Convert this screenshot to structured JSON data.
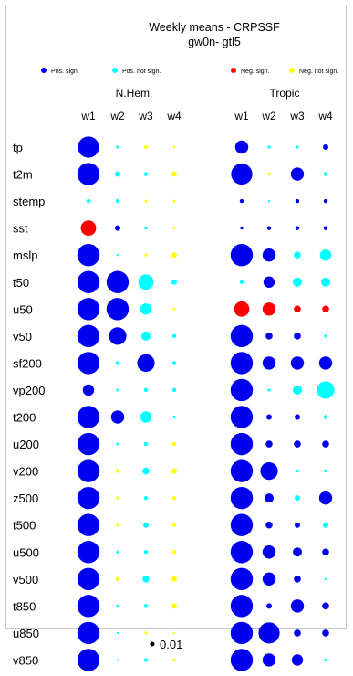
{
  "chart_data": {
    "type": "bubble-matrix",
    "title": "Weekly means - CRPSSF",
    "subtitle": "gw0n- gtl5",
    "legend": [
      {
        "label": "Pos. sign.",
        "color": "#0000ee"
      },
      {
        "label": "Pos. not sign.",
        "color": "#00ffff"
      },
      {
        "label": "Neg. sign.",
        "color": "#ff0000"
      },
      {
        "label": "Neg. not sign.",
        "color": "#ffff00"
      }
    ],
    "groups": [
      "N.Hem.",
      "Tropic"
    ],
    "weeks": [
      "w1",
      "w2",
      "w3",
      "w4"
    ],
    "variables": [
      "tp",
      "t2m",
      "stemp",
      "sst",
      "mslp",
      "t50",
      "u50",
      "v50",
      "sf200",
      "vp200",
      "t200",
      "u200",
      "v200",
      "z500",
      "t500",
      "u500",
      "v500",
      "t850",
      "u850",
      "v850"
    ],
    "scale_reference": {
      "label": "0.01",
      "value": 0.01
    },
    "values_note": "cells: [size_index, category]; category 0=Pos. sign., 1=Pos. not sign., 2=Neg. sign., 3=Neg. not sign.",
    "nhem": [
      [
        [
          11,
          0
        ],
        [
          1,
          1
        ],
        [
          2,
          3
        ],
        [
          0,
          3
        ]
      ],
      [
        [
          12,
          0
        ],
        [
          3,
          1
        ],
        [
          2,
          1
        ],
        [
          3,
          3
        ]
      ],
      [
        [
          2,
          1
        ],
        [
          2,
          1
        ],
        [
          1,
          3
        ],
        [
          1,
          3
        ]
      ],
      [
        [
          8,
          2
        ],
        [
          3,
          0
        ],
        [
          1,
          1
        ],
        [
          0,
          3
        ]
      ],
      [
        [
          12,
          0
        ],
        [
          0,
          1
        ],
        [
          1,
          3
        ],
        [
          3,
          3
        ]
      ],
      [
        [
          12,
          0
        ],
        [
          12,
          0
        ],
        [
          8,
          1
        ],
        [
          3,
          1
        ]
      ],
      [
        [
          12,
          0
        ],
        [
          12,
          0
        ],
        [
          6,
          1
        ],
        [
          1,
          3
        ]
      ],
      [
        [
          12,
          0
        ],
        [
          9,
          0
        ],
        [
          5,
          1
        ],
        [
          2,
          1
        ]
      ],
      [
        [
          12,
          0
        ],
        [
          2,
          1
        ],
        [
          9,
          0
        ],
        [
          2,
          1
        ]
      ],
      [
        [
          6,
          0
        ],
        [
          1,
          1
        ],
        [
          2,
          1
        ],
        [
          2,
          1
        ]
      ],
      [
        [
          12,
          0
        ],
        [
          7,
          0
        ],
        [
          6,
          1
        ],
        [
          1,
          1
        ]
      ],
      [
        [
          12,
          0
        ],
        [
          1,
          1
        ],
        [
          2,
          1
        ],
        [
          2,
          3
        ]
      ],
      [
        [
          12,
          0
        ],
        [
          2,
          3
        ],
        [
          4,
          1
        ],
        [
          3,
          3
        ]
      ],
      [
        [
          12,
          0
        ],
        [
          1,
          3
        ],
        [
          2,
          1
        ],
        [
          2,
          3
        ]
      ],
      [
        [
          12,
          0
        ],
        [
          1,
          3
        ],
        [
          3,
          1
        ],
        [
          2,
          3
        ]
      ],
      [
        [
          12,
          0
        ],
        [
          1,
          1
        ],
        [
          2,
          1
        ],
        [
          2,
          3
        ]
      ],
      [
        [
          12,
          0
        ],
        [
          2,
          3
        ],
        [
          4,
          1
        ],
        [
          3,
          3
        ]
      ],
      [
        [
          12,
          0
        ],
        [
          1,
          1
        ],
        [
          2,
          1
        ],
        [
          3,
          3
        ]
      ],
      [
        [
          12,
          0
        ],
        [
          0,
          1
        ],
        [
          1,
          3
        ],
        [
          0,
          3
        ]
      ],
      [
        [
          12,
          0
        ],
        [
          0,
          1
        ],
        [
          2,
          1
        ],
        [
          1,
          3
        ]
      ]
    ],
    "tropic": [
      [
        [
          7,
          0
        ],
        [
          1,
          1
        ],
        [
          1,
          1
        ],
        [
          3,
          0
        ]
      ],
      [
        [
          11,
          0
        ],
        [
          1,
          3
        ],
        [
          7,
          0
        ],
        [
          2,
          1
        ]
      ],
      [
        [
          2,
          0
        ],
        [
          0,
          1
        ],
        [
          2,
          0
        ],
        [
          2,
          0
        ]
      ],
      [
        [
          1,
          0
        ],
        [
          2,
          0
        ],
        [
          2,
          0
        ],
        [
          2,
          0
        ]
      ],
      [
        [
          12,
          0
        ],
        [
          7,
          0
        ],
        [
          4,
          1
        ],
        [
          6,
          1
        ]
      ],
      [
        [
          2,
          1
        ],
        [
          6,
          0
        ],
        [
          5,
          1
        ],
        [
          5,
          1
        ]
      ],
      [
        [
          8,
          2
        ],
        [
          7,
          2
        ],
        [
          4,
          2
        ],
        [
          4,
          2
        ]
      ],
      [
        [
          12,
          0
        ],
        [
          4,
          0
        ],
        [
          4,
          0
        ],
        [
          1,
          1
        ]
      ],
      [
        [
          12,
          0
        ],
        [
          7,
          0
        ],
        [
          7,
          0
        ],
        [
          7,
          0
        ]
      ],
      [
        [
          12,
          0
        ],
        [
          1,
          1
        ],
        [
          5,
          1
        ],
        [
          9,
          1
        ]
      ],
      [
        [
          12,
          0
        ],
        [
          3,
          0
        ],
        [
          3,
          0
        ],
        [
          2,
          1
        ]
      ],
      [
        [
          12,
          0
        ],
        [
          4,
          0
        ],
        [
          4,
          0
        ],
        [
          4,
          0
        ]
      ],
      [
        [
          12,
          0
        ],
        [
          9,
          0
        ],
        [
          1,
          1
        ],
        [
          1,
          1
        ]
      ],
      [
        [
          12,
          0
        ],
        [
          5,
          0
        ],
        [
          3,
          1
        ],
        [
          7,
          0
        ]
      ],
      [
        [
          12,
          0
        ],
        [
          4,
          0
        ],
        [
          3,
          0
        ],
        [
          3,
          1
        ]
      ],
      [
        [
          12,
          0
        ],
        [
          7,
          0
        ],
        [
          5,
          0
        ],
        [
          4,
          0
        ]
      ],
      [
        [
          12,
          0
        ],
        [
          7,
          0
        ],
        [
          4,
          0
        ],
        [
          0,
          1
        ]
      ],
      [
        [
          12,
          0
        ],
        [
          3,
          0
        ],
        [
          7,
          0
        ],
        [
          4,
          0
        ]
      ],
      [
        [
          12,
          0
        ],
        [
          11,
          0
        ],
        [
          4,
          0
        ],
        [
          4,
          0
        ]
      ],
      [
        [
          12,
          0
        ],
        [
          7,
          0
        ],
        [
          6,
          0
        ],
        [
          1,
          1
        ]
      ]
    ]
  }
}
